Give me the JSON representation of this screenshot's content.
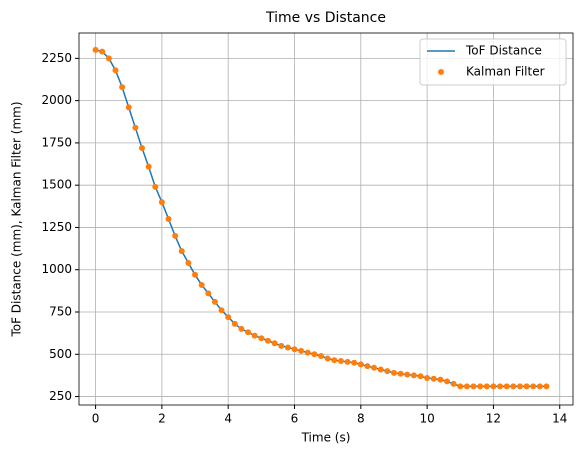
{
  "chart_data": {
    "type": "line_scatter",
    "title": "Time vs Distance",
    "xlabel": "Time (s)",
    "ylabel": "ToF Distance (mm), Kalman Filter (mm)",
    "x": [
      0,
      0.2,
      0.4,
      0.6,
      0.8,
      1.0,
      1.2,
      1.4,
      1.6,
      1.8,
      2.0,
      2.2,
      2.4,
      2.6,
      2.8,
      3.0,
      3.2,
      3.4,
      3.6,
      3.8,
      4.0,
      4.2,
      4.4,
      4.6,
      4.8,
      5.0,
      5.2,
      5.4,
      5.6,
      5.8,
      6.0,
      6.2,
      6.4,
      6.6,
      6.8,
      7.0,
      7.2,
      7.4,
      7.6,
      7.8,
      8.0,
      8.2,
      8.4,
      8.6,
      8.8,
      9.0,
      9.2,
      9.4,
      9.6,
      9.8,
      10.0,
      10.2,
      10.4,
      10.6,
      10.8,
      11.0,
      11.2,
      11.4,
      11.6,
      11.8,
      12.0,
      12.2,
      12.4,
      12.6,
      12.8,
      13.0,
      13.2,
      13.4,
      13.6
    ],
    "series": [
      {
        "name": "ToF Distance",
        "color": "#1f77b4",
        "style": "line",
        "values": [
          2300,
          2290,
          2250,
          2180,
          2080,
          1960,
          1840,
          1720,
          1610,
          1490,
          1400,
          1300,
          1200,
          1110,
          1040,
          970,
          910,
          860,
          810,
          760,
          720,
          680,
          650,
          630,
          610,
          595,
          580,
          565,
          550,
          540,
          530,
          520,
          510,
          500,
          490,
          475,
          465,
          460,
          455,
          450,
          440,
          430,
          420,
          410,
          400,
          390,
          385,
          380,
          375,
          370,
          360,
          355,
          350,
          340,
          325,
          310,
          310,
          310,
          310,
          310,
          310,
          310,
          310,
          310,
          310,
          310,
          310,
          310,
          310
        ]
      },
      {
        "name": "Kalman Filter",
        "color": "#ff7f0e",
        "style": "dots",
        "values": [
          2300,
          2290,
          2250,
          2180,
          2080,
          1960,
          1840,
          1720,
          1610,
          1490,
          1400,
          1300,
          1200,
          1110,
          1040,
          970,
          910,
          860,
          810,
          760,
          720,
          680,
          650,
          630,
          610,
          595,
          580,
          565,
          550,
          540,
          530,
          520,
          510,
          500,
          490,
          475,
          465,
          460,
          455,
          450,
          440,
          430,
          420,
          410,
          400,
          390,
          385,
          380,
          375,
          370,
          360,
          355,
          350,
          340,
          325,
          310,
          310,
          310,
          310,
          310,
          310,
          310,
          310,
          310,
          310,
          310,
          310,
          310,
          310
        ]
      }
    ],
    "xlim": [
      -0.5,
      14.4
    ],
    "ylim": [
      200,
      2400
    ],
    "xticks": [
      0,
      2,
      4,
      6,
      8,
      10,
      12,
      14
    ],
    "yticks": [
      250,
      500,
      750,
      1000,
      1250,
      1500,
      1750,
      2000,
      2250
    ],
    "grid": true,
    "legend": "upper right"
  }
}
